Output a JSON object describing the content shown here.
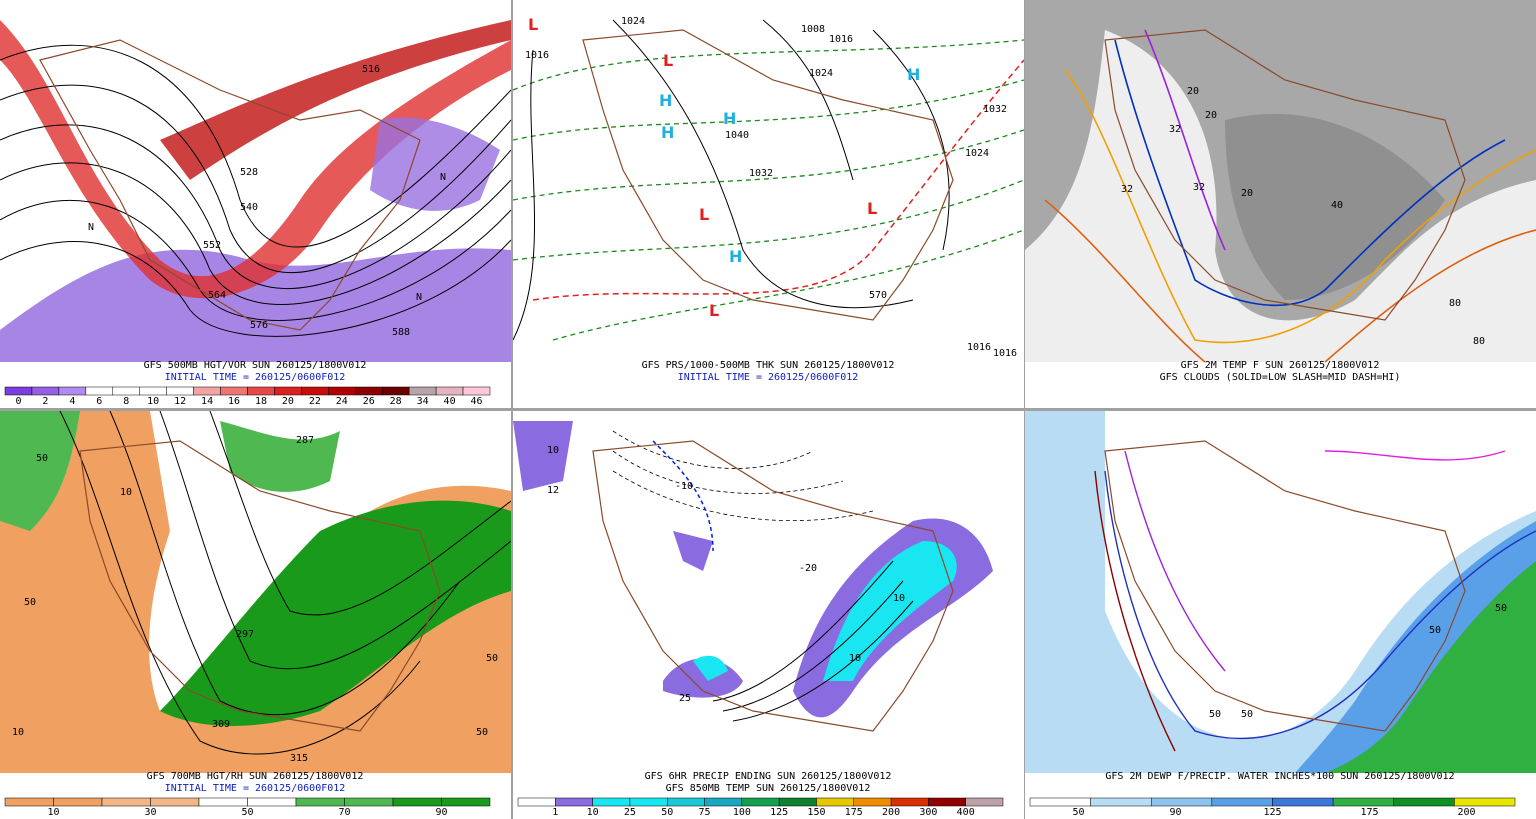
{
  "panels": [
    {
      "caption": [
        "GFS 500MB HGT/VOR SUN 260125/1800V012",
        "INITIAL TIME = 260125/0600F012"
      ],
      "colorbar": {
        "ticks": [
          0,
          2,
          4,
          6,
          8,
          10,
          12,
          14,
          16,
          18,
          20,
          22,
          24,
          26,
          28,
          34,
          40,
          46
        ],
        "colors": [
          "#7a3de0",
          "#9560e6",
          "#b08aee",
          "#ffffff",
          "#ffffff",
          "#ffffff",
          "#ffffff",
          "#f4a3a3",
          "#ef7474",
          "#e84848",
          "#dc2020",
          "#c80c0c",
          "#b00000",
          "#8c0000",
          "#6c0000",
          "#b8a3a8",
          "#e6b4c0",
          "#ffc8d8"
        ]
      },
      "map_labels": [
        "516",
        "528",
        "540",
        "552",
        "564",
        "576",
        "588",
        "N",
        "N",
        "N"
      ]
    },
    {
      "caption": [
        "GFS PRS/1000-500MB THK SUN 260125/1800V012",
        "INITIAL TIME = 260125/0600F012"
      ],
      "map_labels": [
        "L",
        "1016",
        "1024",
        "1008",
        "1016",
        "1024",
        "1040",
        "1032",
        "1032",
        "1024",
        "H",
        "H",
        "H",
        "H",
        "H",
        "L",
        "L",
        "L",
        "L",
        "570",
        "1016",
        "1016"
      ]
    },
    {
      "caption": [
        "GFS 2M TEMP F SUN 260125/1800V012",
        "GFS CLOUDS (SOLID=LOW SLASH=MID DASH=HI)"
      ],
      "map_labels": [
        "20",
        "32",
        "32",
        "32",
        "20",
        "20",
        "40",
        "80",
        "80"
      ]
    },
    {
      "caption": [
        "GFS 700MB HGT/RH SUN 260125/1800V012",
        "INITIAL TIME = 260125/0600F012"
      ],
      "colorbar": {
        "ticks": [
          10,
          30,
          50,
          70,
          90
        ],
        "colors": [
          "#f0a060",
          "#f0a060",
          "#f3b684",
          "#f3b684",
          "#ffffff",
          "#ffffff",
          "#50b850",
          "#50b850",
          "#1a9a1a",
          "#1a9a1a"
        ]
      },
      "map_labels": [
        "50",
        "10",
        "50",
        "10",
        "50",
        "287",
        "297",
        "309",
        "315",
        "50"
      ]
    },
    {
      "caption": [
        "GFS 6HR PRECIP ENDING SUN 260125/1800V012",
        "GFS 850MB TEMP SUN 260125/1800V012"
      ],
      "colorbar": {
        "ticks": [
          1,
          10,
          25,
          50,
          75,
          100,
          125,
          150,
          175,
          200,
          300,
          400
        ],
        "colors": [
          "#ffffff",
          "#8a6be0",
          "#19e6f0",
          "#19e6f0",
          "#1bc8d8",
          "#1aa8c0",
          "#14a050",
          "#0e8030",
          "#e6c800",
          "#f08c00",
          "#d83000",
          "#900000",
          "#c0a0a8"
        ]
      },
      "map_labels": [
        "10",
        "12",
        "25",
        "10",
        "10",
        "-10",
        "-20"
      ]
    },
    {
      "caption": [
        "GFS 2M DEWP F/PRECIP. WATER INCHES*100 SUN 260125/1800V012"
      ],
      "colorbar": {
        "ticks": [
          50,
          90,
          125,
          175,
          200
        ],
        "colors": [
          "#ffffff",
          "#b8dcf4",
          "#8cc4f0",
          "#5aa0e8",
          "#3c78d8",
          "#30b040",
          "#109020",
          "#e6e600"
        ]
      },
      "map_labels": [
        "50",
        "50",
        "50",
        "50"
      ]
    }
  ]
}
